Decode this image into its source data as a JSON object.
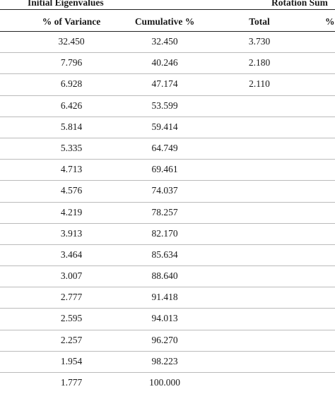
{
  "table": {
    "group_headers": {
      "initial": "Initial Eigenvalues",
      "rotation": "Rotation Sum"
    },
    "column_headers": {
      "variance": "% of Variance",
      "cumulative": "Cumulative %",
      "total": "Total",
      "percent": "%"
    },
    "rows": [
      {
        "variance": "32.450",
        "cumulative": "32.450",
        "total": "3.730"
      },
      {
        "variance": "7.796",
        "cumulative": "40.246",
        "total": "2.180"
      },
      {
        "variance": "6.928",
        "cumulative": "47.174",
        "total": "2.110"
      },
      {
        "variance": "6.426",
        "cumulative": "53.599",
        "total": ""
      },
      {
        "variance": "5.814",
        "cumulative": "59.414",
        "total": ""
      },
      {
        "variance": "5.335",
        "cumulative": "64.749",
        "total": ""
      },
      {
        "variance": "4.713",
        "cumulative": "69.461",
        "total": ""
      },
      {
        "variance": "4.576",
        "cumulative": "74.037",
        "total": ""
      },
      {
        "variance": "4.219",
        "cumulative": "78.257",
        "total": ""
      },
      {
        "variance": "3.913",
        "cumulative": "82.170",
        "total": ""
      },
      {
        "variance": "3.464",
        "cumulative": "85.634",
        "total": ""
      },
      {
        "variance": "3.007",
        "cumulative": "88.640",
        "total": ""
      },
      {
        "variance": "2.777",
        "cumulative": "91.418",
        "total": ""
      },
      {
        "variance": "2.595",
        "cumulative": "94.013",
        "total": ""
      },
      {
        "variance": "2.257",
        "cumulative": "96.270",
        "total": ""
      },
      {
        "variance": "1.954",
        "cumulative": "98.223",
        "total": ""
      },
      {
        "variance": "1.777",
        "cumulative": "100.000",
        "total": ""
      }
    ]
  }
}
